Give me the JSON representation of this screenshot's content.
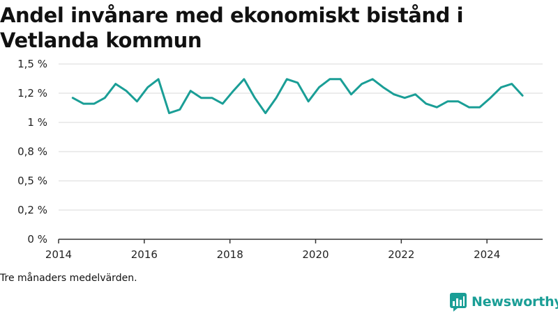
{
  "title": "Andel invånare med ekonomiskt bistånd i Vetlanda kommun",
  "note": "Tre månaders medelvärden.",
  "brand": {
    "name": "Newsworthy",
    "color": "#1a9e96"
  },
  "chart_data": {
    "type": "line",
    "title": "Andel invånare med ekonomiskt bistånd i Vetlanda kommun",
    "xlabel": "",
    "ylabel": "",
    "ylim": [
      0,
      1.5
    ],
    "xlim": [
      2014,
      2025.3
    ],
    "yticks": [
      0,
      0.25,
      0.5,
      0.75,
      1.0,
      1.25,
      1.5
    ],
    "ytick_labels": [
      "0 %",
      "0,2 %",
      "0,5 %",
      "0,8 %",
      "1 %",
      "1,2 %",
      "1,5 %"
    ],
    "xticks": [
      2014,
      2016,
      2018,
      2020,
      2022,
      2024
    ],
    "xtick_labels": [
      "2014",
      "2016",
      "2018",
      "2020",
      "2022",
      "2024"
    ],
    "grid": true,
    "line_color": "#1a9e96",
    "series": [
      {
        "x": [
          2014.33,
          2014.58,
          2014.83,
          2015.08,
          2015.33,
          2015.58,
          2015.83,
          2016.08,
          2016.33,
          2016.58,
          2016.83,
          2017.08,
          2017.33,
          2017.58,
          2017.83,
          2018.08,
          2018.33,
          2018.58,
          2018.83,
          2019.08,
          2019.33,
          2019.58,
          2019.83,
          2020.08,
          2020.33,
          2020.58,
          2020.83,
          2021.08,
          2021.33,
          2021.58,
          2021.83,
          2022.08,
          2022.33,
          2022.58,
          2022.83,
          2023.08,
          2023.33,
          2023.58,
          2023.83,
          2024.08,
          2024.33,
          2024.58,
          2024.83
        ],
        "values": [
          1.21,
          1.16,
          1.16,
          1.21,
          1.33,
          1.27,
          1.18,
          1.3,
          1.37,
          1.08,
          1.11,
          1.27,
          1.21,
          1.21,
          1.16,
          1.27,
          1.37,
          1.21,
          1.08,
          1.21,
          1.37,
          1.34,
          1.18,
          1.3,
          1.37,
          1.37,
          1.24,
          1.33,
          1.37,
          1.3,
          1.24,
          1.21,
          1.24,
          1.16,
          1.13,
          1.18,
          1.18,
          1.13,
          1.13,
          1.21,
          1.3,
          1.33,
          1.23
        ]
      }
    ]
  }
}
